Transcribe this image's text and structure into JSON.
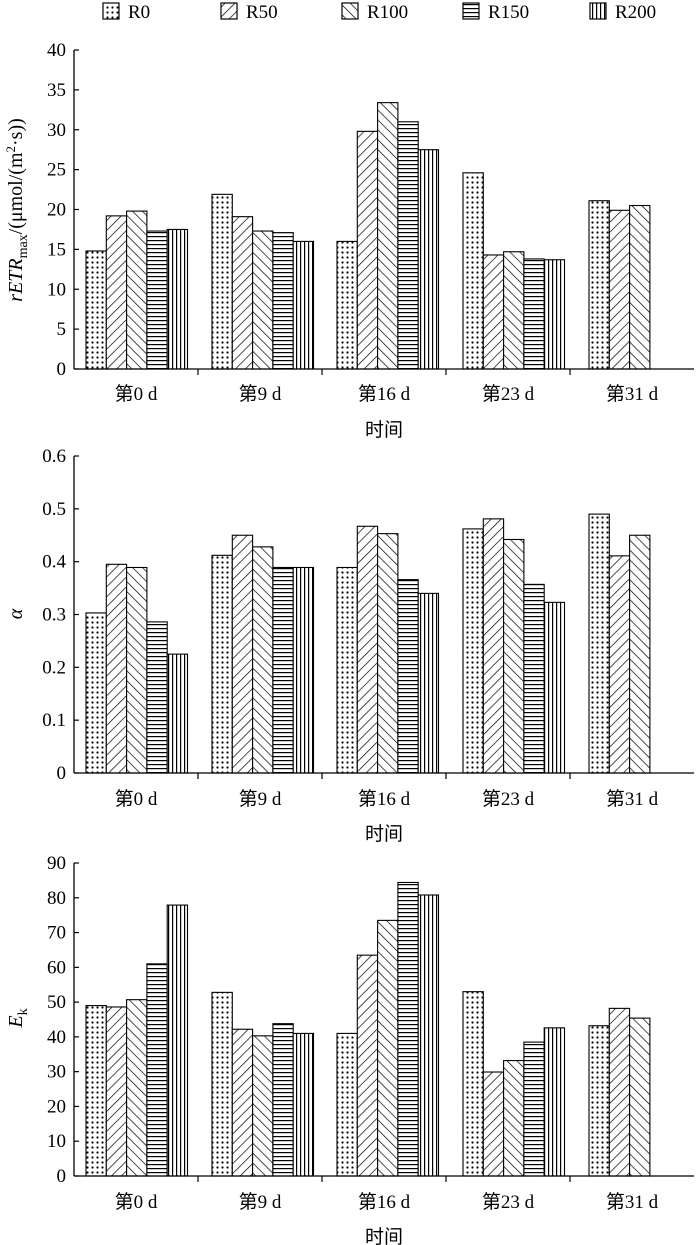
{
  "legend": [
    "R0",
    "R50",
    "R100",
    "R150",
    "R200"
  ],
  "chart_data": [
    {
      "type": "bar",
      "categories": [
        "第0 d",
        "第9 d",
        "第16 d",
        "第23 d",
        "第31 d"
      ],
      "xlabel": "时间",
      "ylabel": {
        "prefix": "rETR",
        "sub": "max",
        "suffix": "/(μmol/(m",
        "sup": "2",
        "tail": "·s))"
      },
      "ylim": [
        0,
        40
      ],
      "yticks": [
        0,
        5,
        10,
        15,
        20,
        25,
        30,
        35,
        40
      ],
      "series": [
        {
          "name": "R0",
          "values": [
            14.8,
            21.9,
            16.0,
            24.6,
            21.1
          ]
        },
        {
          "name": "R50",
          "values": [
            19.2,
            19.1,
            29.8,
            14.3,
            19.9
          ]
        },
        {
          "name": "R100",
          "values": [
            19.8,
            17.3,
            33.4,
            14.7,
            20.5
          ]
        },
        {
          "name": "R150",
          "values": [
            17.3,
            17.1,
            31.0,
            13.8,
            null
          ]
        },
        {
          "name": "R200",
          "values": [
            17.5,
            16.0,
            27.5,
            13.7,
            null
          ]
        }
      ]
    },
    {
      "type": "bar",
      "categories": [
        "第0 d",
        "第9 d",
        "第16 d",
        "第23 d",
        "第31 d"
      ],
      "xlabel": "时间",
      "ylabel": {
        "prefix": "α"
      },
      "ylim": [
        0,
        0.6
      ],
      "yticks": [
        0,
        0.1,
        0.2,
        0.3,
        0.4,
        0.5,
        0.6
      ],
      "series": [
        {
          "name": "R0",
          "values": [
            0.303,
            0.412,
            0.389,
            0.462,
            0.49
          ]
        },
        {
          "name": "R50",
          "values": [
            0.395,
            0.45,
            0.467,
            0.481,
            0.411
          ]
        },
        {
          "name": "R100",
          "values": [
            0.389,
            0.428,
            0.453,
            0.442,
            0.45
          ]
        },
        {
          "name": "R150",
          "values": [
            0.286,
            0.389,
            0.366,
            0.357,
            null
          ]
        },
        {
          "name": "R200",
          "values": [
            0.225,
            0.389,
            0.34,
            0.323,
            null
          ]
        }
      ]
    },
    {
      "type": "bar",
      "categories": [
        "第0 d",
        "第9 d",
        "第16 d",
        "第23 d",
        "第31 d"
      ],
      "xlabel": "时间",
      "ylabel": {
        "prefix": "E",
        "sub": "k"
      },
      "ylim": [
        0,
        90
      ],
      "yticks": [
        0,
        10,
        20,
        30,
        40,
        50,
        60,
        70,
        80,
        90
      ],
      "series": [
        {
          "name": "R0",
          "values": [
            49.0,
            52.8,
            41.0,
            53.0,
            43.2
          ]
        },
        {
          "name": "R50",
          "values": [
            48.6,
            42.2,
            63.5,
            29.9,
            48.2
          ]
        },
        {
          "name": "R100",
          "values": [
            50.7,
            40.3,
            73.5,
            33.2,
            45.4
          ]
        },
        {
          "name": "R150",
          "values": [
            61.0,
            43.8,
            84.4,
            38.5,
            null
          ]
        },
        {
          "name": "R200",
          "values": [
            77.9,
            41.0,
            80.8,
            42.6,
            null
          ]
        }
      ]
    }
  ]
}
